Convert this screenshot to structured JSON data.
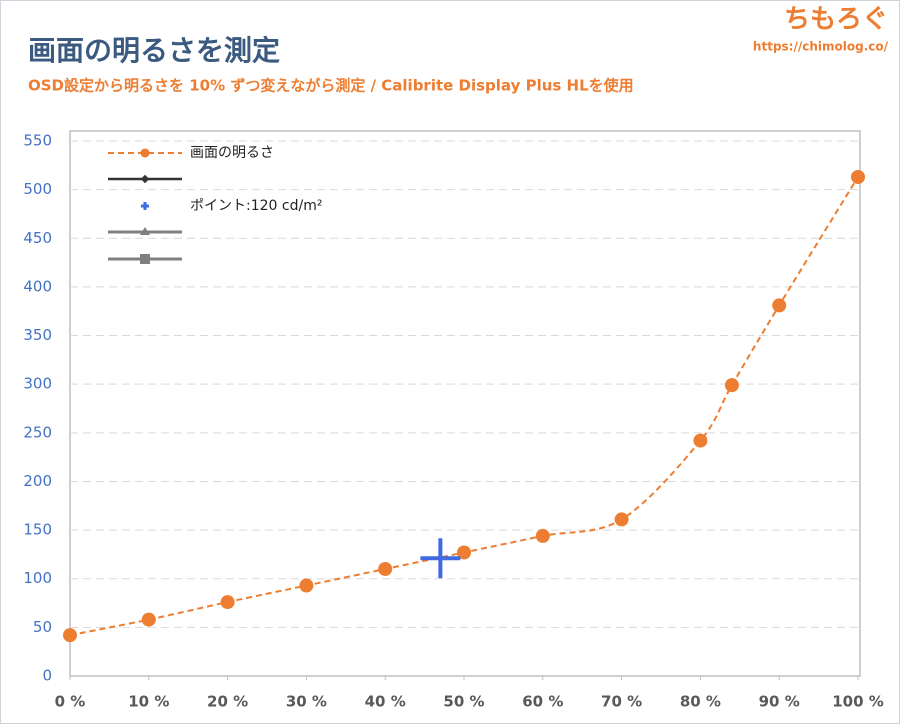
{
  "chart_data": {
    "type": "line",
    "title": "画面の明るさを測定",
    "subtitle": "OSD設定から明るさを 10% ずつ変えながら測定 / Calibrite Display Plus HLを使用",
    "brand": "ちもろぐ",
    "brand_url": "https://chimolog.co/",
    "series": [
      {
        "name": "画面の明るさ",
        "color": "#ed7d31",
        "marker": "circle",
        "line": "dashed",
        "x": [
          0,
          10,
          20,
          30,
          40,
          50,
          60,
          70,
          80,
          84,
          90,
          100
        ],
        "values": [
          42,
          58,
          76,
          93,
          110,
          127,
          144,
          161,
          242,
          299,
          381,
          513
        ]
      },
      {
        "name": "ポイント:120 cd/m²",
        "color": "#4169e1",
        "marker": "cross",
        "line": "none",
        "x": [
          47
        ],
        "values": [
          121
        ]
      }
    ],
    "xlim": [
      0,
      100
    ],
    "xticks": [
      {
        "value": 0,
        "label": "0 %"
      },
      {
        "value": 10,
        "label": "10 %"
      },
      {
        "value": 20,
        "label": "20 %"
      },
      {
        "value": 30,
        "label": "30 %"
      },
      {
        "value": 40,
        "label": "40 %"
      },
      {
        "value": 50,
        "label": "50 %"
      },
      {
        "value": 60,
        "label": "60 %"
      },
      {
        "value": 70,
        "label": "70 %"
      },
      {
        "value": 80,
        "label": "80 %"
      },
      {
        "value": 90,
        "label": "90 %"
      },
      {
        "value": 100,
        "label": "100 %"
      }
    ],
    "ylim": [
      0,
      550
    ],
    "yticks": [
      0,
      50,
      100,
      150,
      200,
      250,
      300,
      350,
      400,
      450,
      500,
      550
    ],
    "grid": true
  }
}
